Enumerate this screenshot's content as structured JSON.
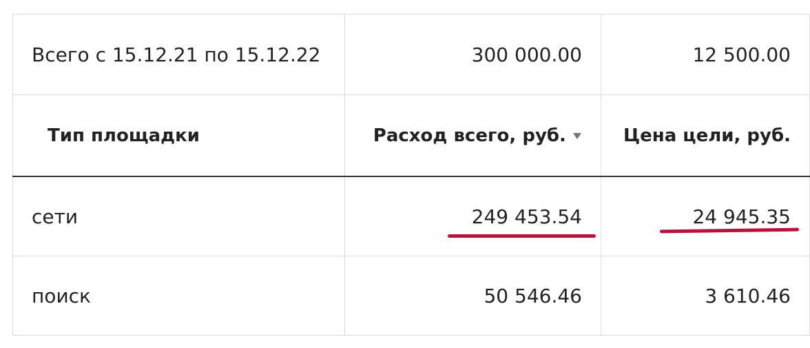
{
  "table": {
    "total": [
      "Всего с 15.12.21 по 15.12.22",
      "300 000.00",
      "12 500.00"
    ],
    "header": [
      "Тип площадки",
      "Расход всего, руб.",
      "Цена цели, руб."
    ],
    "rows": [
      [
        "сети",
        "249 453.54",
        "24 945.35"
      ],
      [
        "поиск",
        "50 546.46",
        "3 610.46"
      ]
    ]
  }
}
